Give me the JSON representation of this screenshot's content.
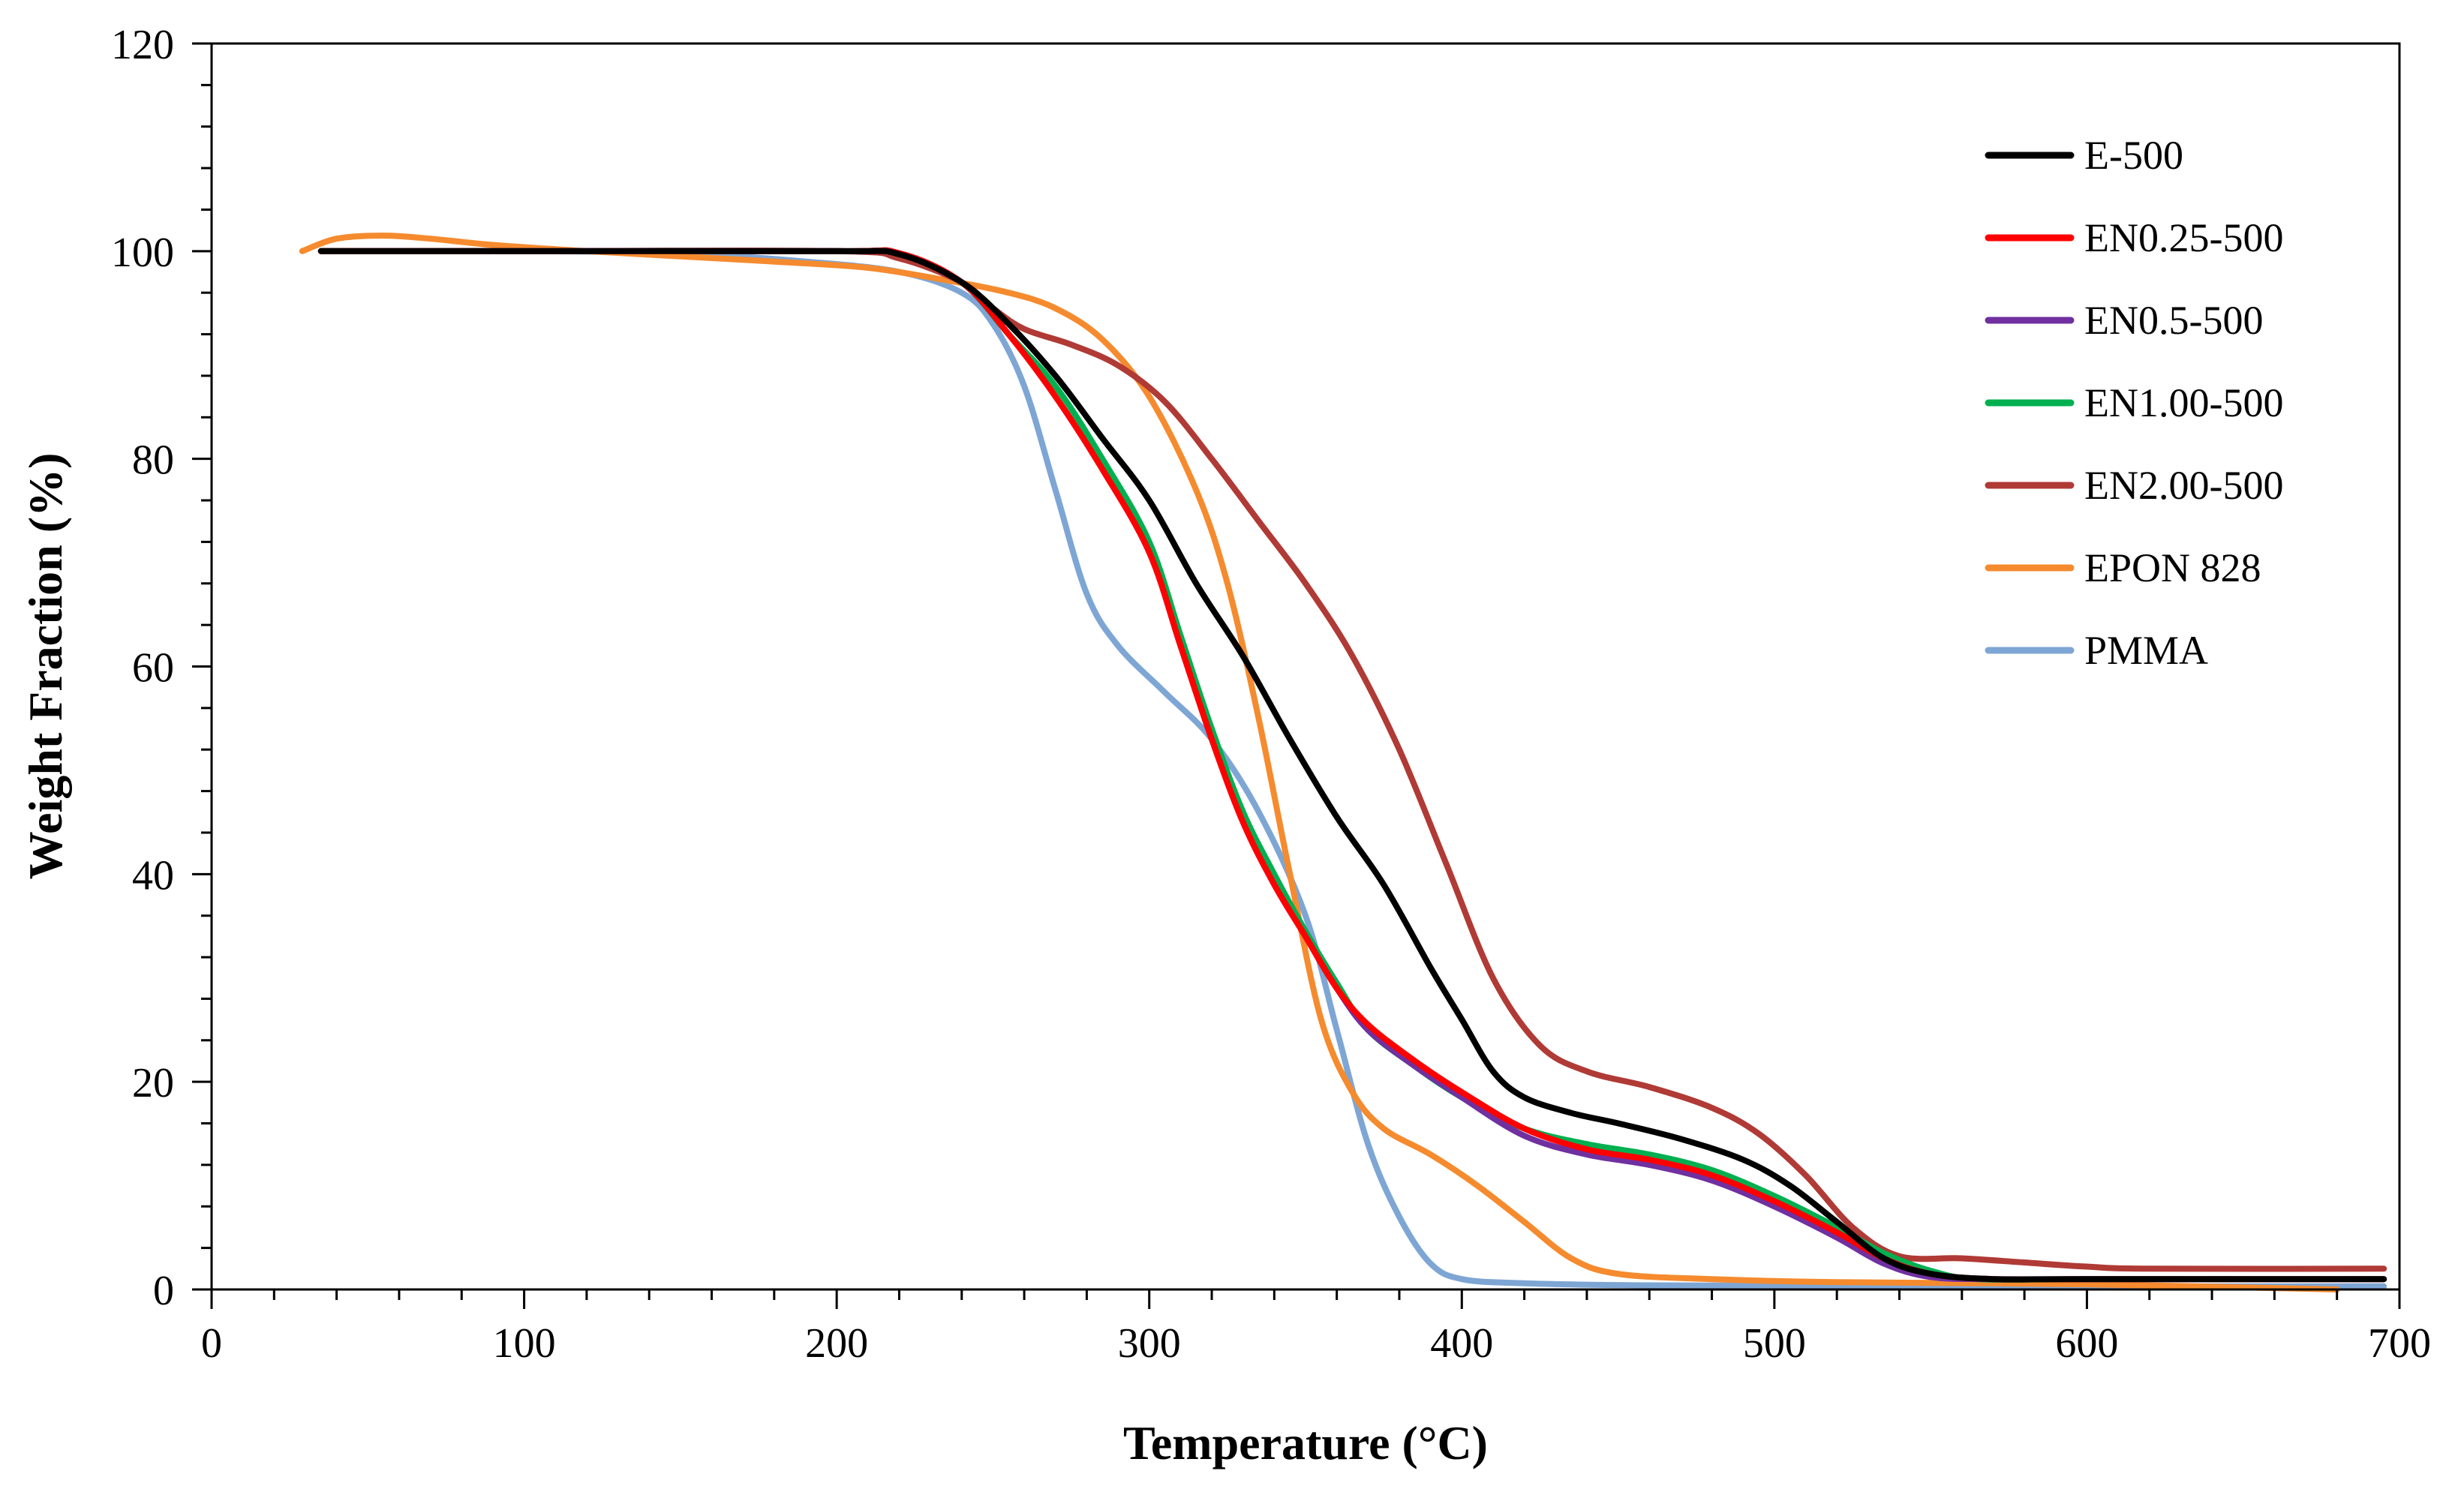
{
  "chart_data": {
    "type": "line",
    "title": "",
    "xlabel": "Temperature (°C)",
    "ylabel": "Weight Fraction (%)",
    "xlim": [
      0,
      700
    ],
    "ylim": [
      0,
      120
    ],
    "xticks": [
      0,
      100,
      200,
      300,
      400,
      500,
      600,
      700
    ],
    "yticks": [
      0,
      20,
      40,
      60,
      80,
      100,
      120
    ],
    "x_tick_labels": [
      "0",
      "100",
      "200",
      "300",
      "400",
      "500",
      "600",
      "700"
    ],
    "y_tick_labels": [
      "0",
      "20",
      "40",
      "60",
      "80",
      "100",
      "120"
    ],
    "grid": false,
    "legend_position": "top-right",
    "series": [
      {
        "name": "E-500",
        "color": "#000000",
        "points": [
          [
            35,
            100
          ],
          [
            100,
            100
          ],
          [
            200,
            100
          ],
          [
            220,
            99.7
          ],
          [
            240,
            97
          ],
          [
            255,
            93
          ],
          [
            270,
            88
          ],
          [
            285,
            82
          ],
          [
            300,
            76
          ],
          [
            315,
            68
          ],
          [
            330,
            61
          ],
          [
            345,
            53
          ],
          [
            360,
            45.5
          ],
          [
            375,
            39
          ],
          [
            390,
            31
          ],
          [
            400,
            26
          ],
          [
            410,
            21
          ],
          [
            420,
            18.5
          ],
          [
            435,
            17
          ],
          [
            450,
            16
          ],
          [
            470,
            14.5
          ],
          [
            490,
            12.5
          ],
          [
            505,
            10
          ],
          [
            520,
            6.5
          ],
          [
            535,
            3
          ],
          [
            550,
            1.5
          ],
          [
            570,
            1
          ],
          [
            600,
            1
          ],
          [
            695,
            1
          ]
        ]
      },
      {
        "name": "EN0.25-500",
        "color": "#ff0000",
        "points": [
          [
            35,
            100
          ],
          [
            100,
            100
          ],
          [
            200,
            100
          ],
          [
            220,
            99.8
          ],
          [
            240,
            97
          ],
          [
            255,
            92
          ],
          [
            270,
            86
          ],
          [
            285,
            79
          ],
          [
            300,
            71
          ],
          [
            310,
            62
          ],
          [
            320,
            53
          ],
          [
            330,
            45
          ],
          [
            340,
            39
          ],
          [
            350,
            34
          ],
          [
            360,
            29
          ],
          [
            370,
            25.5
          ],
          [
            385,
            22
          ],
          [
            400,
            19
          ],
          [
            420,
            15.5
          ],
          [
            440,
            13.5
          ],
          [
            460,
            12.5
          ],
          [
            480,
            11
          ],
          [
            500,
            8.5
          ],
          [
            520,
            5.5
          ],
          [
            535,
            3
          ],
          [
            550,
            1.5
          ],
          [
            570,
            1
          ],
          [
            600,
            1
          ],
          [
            695,
            1
          ]
        ]
      },
      {
        "name": "EN0.5-500",
        "color": "#7030a0",
        "points": [
          [
            35,
            100
          ],
          [
            100,
            100
          ],
          [
            200,
            100
          ],
          [
            220,
            99.8
          ],
          [
            240,
            97
          ],
          [
            255,
            92
          ],
          [
            270,
            86
          ],
          [
            285,
            79
          ],
          [
            300,
            71
          ],
          [
            310,
            62
          ],
          [
            320,
            53
          ],
          [
            330,
            45
          ],
          [
            340,
            39
          ],
          [
            350,
            34
          ],
          [
            360,
            29
          ],
          [
            370,
            25
          ],
          [
            385,
            21.5
          ],
          [
            400,
            18.5
          ],
          [
            420,
            14.8
          ],
          [
            440,
            13
          ],
          [
            460,
            12
          ],
          [
            480,
            10.5
          ],
          [
            500,
            8
          ],
          [
            520,
            5
          ],
          [
            535,
            2.5
          ],
          [
            550,
            1.2
          ],
          [
            570,
            1
          ],
          [
            600,
            1
          ],
          [
            695,
            1
          ]
        ]
      },
      {
        "name": "EN1.00-500",
        "color": "#00b050",
        "points": [
          [
            35,
            100
          ],
          [
            100,
            100
          ],
          [
            200,
            100
          ],
          [
            220,
            99.8
          ],
          [
            240,
            97
          ],
          [
            255,
            92
          ],
          [
            270,
            87
          ],
          [
            285,
            80
          ],
          [
            300,
            72
          ],
          [
            310,
            63
          ],
          [
            320,
            54
          ],
          [
            330,
            46
          ],
          [
            340,
            40
          ],
          [
            350,
            34.5
          ],
          [
            360,
            29.5
          ],
          [
            370,
            25
          ],
          [
            385,
            21.5
          ],
          [
            400,
            18.5
          ],
          [
            420,
            15.5
          ],
          [
            440,
            14
          ],
          [
            460,
            13
          ],
          [
            480,
            11.5
          ],
          [
            500,
            9
          ],
          [
            520,
            6
          ],
          [
            535,
            3.5
          ],
          [
            550,
            1.8
          ],
          [
            565,
            1
          ],
          [
            600,
            1
          ],
          [
            695,
            1
          ]
        ]
      },
      {
        "name": "EN2.00-500",
        "color": "#b03a35",
        "points": [
          [
            35,
            100
          ],
          [
            100,
            100
          ],
          [
            200,
            100
          ],
          [
            220,
            99.3
          ],
          [
            240,
            97
          ],
          [
            250,
            94.5
          ],
          [
            260,
            92.5
          ],
          [
            275,
            91
          ],
          [
            290,
            89
          ],
          [
            305,
            85.5
          ],
          [
            320,
            80
          ],
          [
            335,
            74
          ],
          [
            350,
            68
          ],
          [
            365,
            61
          ],
          [
            380,
            52
          ],
          [
            395,
            41
          ],
          [
            410,
            30
          ],
          [
            425,
            23.5
          ],
          [
            440,
            21
          ],
          [
            460,
            19.5
          ],
          [
            480,
            17.5
          ],
          [
            495,
            15
          ],
          [
            510,
            11
          ],
          [
            525,
            6
          ],
          [
            540,
            3.2
          ],
          [
            560,
            3
          ],
          [
            580,
            2.6
          ],
          [
            600,
            2.2
          ],
          [
            620,
            2
          ],
          [
            695,
            2
          ]
        ]
      },
      {
        "name": "EPON 828",
        "color": "#f58b2e",
        "points": [
          [
            29,
            100
          ],
          [
            40,
            101.2
          ],
          [
            55,
            101.5
          ],
          [
            70,
            101.2
          ],
          [
            90,
            100.6
          ],
          [
            120,
            100
          ],
          [
            150,
            99.5
          ],
          [
            180,
            99
          ],
          [
            210,
            98.4
          ],
          [
            235,
            97.2
          ],
          [
            255,
            96
          ],
          [
            270,
            94.5
          ],
          [
            285,
            91.5
          ],
          [
            300,
            86
          ],
          [
            315,
            77
          ],
          [
            325,
            68
          ],
          [
            335,
            55
          ],
          [
            345,
            40
          ],
          [
            355,
            26
          ],
          [
            365,
            19
          ],
          [
            375,
            15.5
          ],
          [
            390,
            13
          ],
          [
            405,
            10
          ],
          [
            420,
            6.5
          ],
          [
            435,
            3
          ],
          [
            450,
            1.5
          ],
          [
            480,
            1
          ],
          [
            520,
            0.7
          ],
          [
            600,
            0.5
          ],
          [
            680,
            0
          ]
        ]
      },
      {
        "name": "PMMA",
        "color": "#7ea6d4",
        "points": [
          [
            35,
            100
          ],
          [
            100,
            100
          ],
          [
            150,
            99.8
          ],
          [
            190,
            99
          ],
          [
            220,
            98
          ],
          [
            240,
            96
          ],
          [
            250,
            93
          ],
          [
            260,
            87
          ],
          [
            270,
            77
          ],
          [
            280,
            67
          ],
          [
            290,
            62
          ],
          [
            305,
            57.5
          ],
          [
            320,
            53
          ],
          [
            335,
            46
          ],
          [
            350,
            36
          ],
          [
            360,
            25
          ],
          [
            370,
            14
          ],
          [
            380,
            7
          ],
          [
            390,
            2.5
          ],
          [
            400,
            1
          ],
          [
            420,
            0.6
          ],
          [
            460,
            0.4
          ],
          [
            550,
            0.3
          ],
          [
            695,
            0.3
          ]
        ]
      }
    ]
  }
}
